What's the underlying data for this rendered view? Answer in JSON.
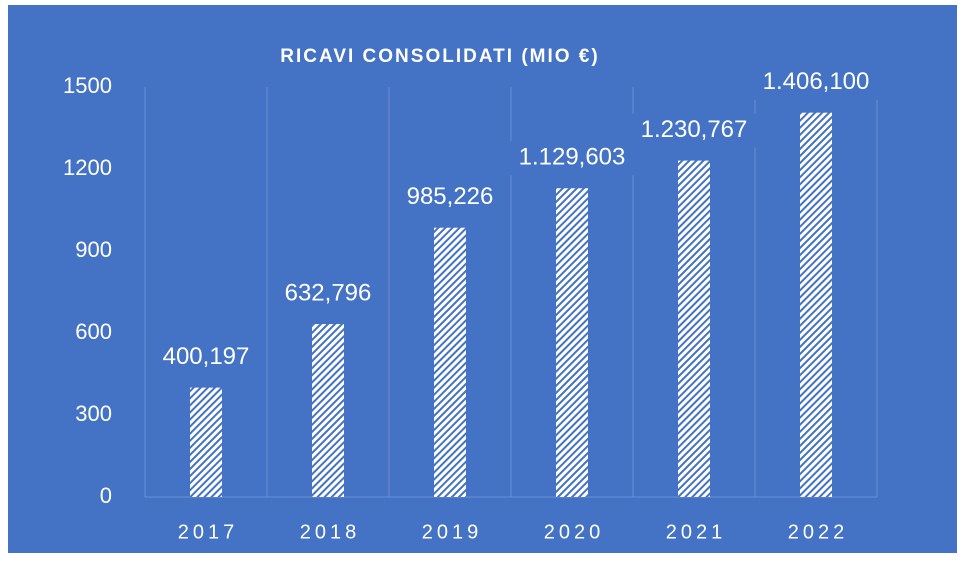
{
  "chart_data": {
    "type": "bar",
    "title": "RICAVI CONSOLIDATI (MIO €)",
    "categories": [
      "2017",
      "2018",
      "2019",
      "2020",
      "2021",
      "2022"
    ],
    "values": [
      400.197,
      632.796,
      985.226,
      1129.603,
      1230.767,
      1406.1
    ],
    "value_labels": [
      "400,197",
      "632,796",
      "985,226",
      "1.129,603",
      "1.230,767",
      "1.406,100"
    ],
    "color": "#ffffff",
    "ylim": [
      0,
      1500
    ],
    "yticks": [
      0,
      300,
      600,
      900,
      1200,
      1500
    ]
  }
}
